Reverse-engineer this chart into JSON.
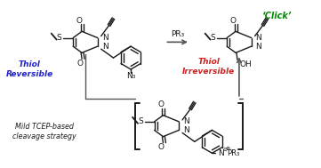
{
  "bg_color": "#ffffff",
  "fig_width": 3.61,
  "fig_height": 1.89,
  "dpi": 100,
  "thiol_reversible_color": "#2222cc",
  "thiol_irreversible_color": "#cc2222",
  "click_color": "#008800",
  "structure_color": "#1a1a1a",
  "mild_tcep_text": "Mild TCEP-based\ncleavage strategy",
  "pr3_label": "PR₃",
  "click_label": "‘Click’",
  "thiol_reversible_label": "Thiol\nReversible",
  "thiol_irreversible_label": "Thiol\nIrreversible",
  "n3_label": "N₃",
  "oh_label": "OH"
}
